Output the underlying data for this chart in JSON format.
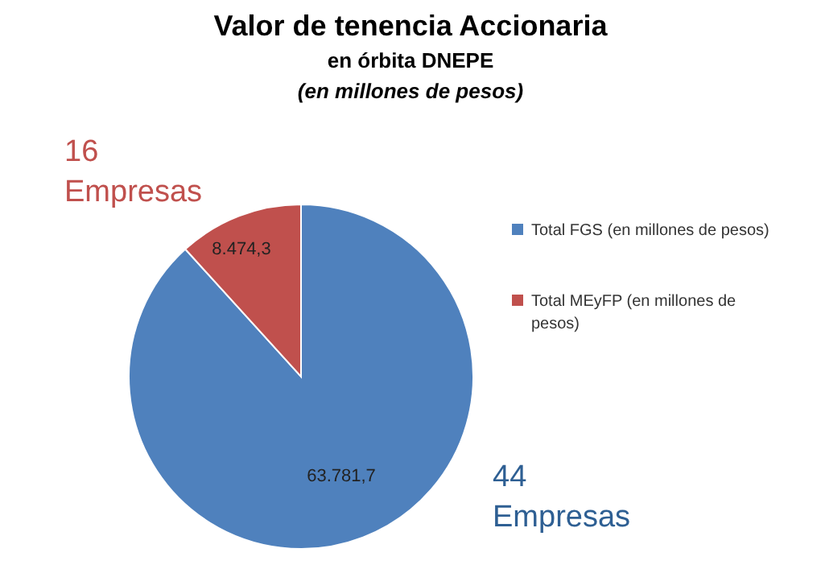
{
  "chart_data": {
    "type": "pie",
    "title": "Valor de tenencia Accionaria",
    "subtitle": "en órbita DNEPE",
    "ylabel": "(en millones de pesos)",
    "categories": [
      "Total FGS (en millones de pesos)",
      "Total MEyFP (en millones de pesos)"
    ],
    "values": [
      63781.7,
      8474.3
    ],
    "colors": [
      "#4f81bd",
      "#c0504d"
    ],
    "value_labels": [
      "63.781,7",
      "8.474,3"
    ],
    "annotations": [
      "16 Empresas",
      "44 Empresas"
    ],
    "legend": "right"
  }
}
